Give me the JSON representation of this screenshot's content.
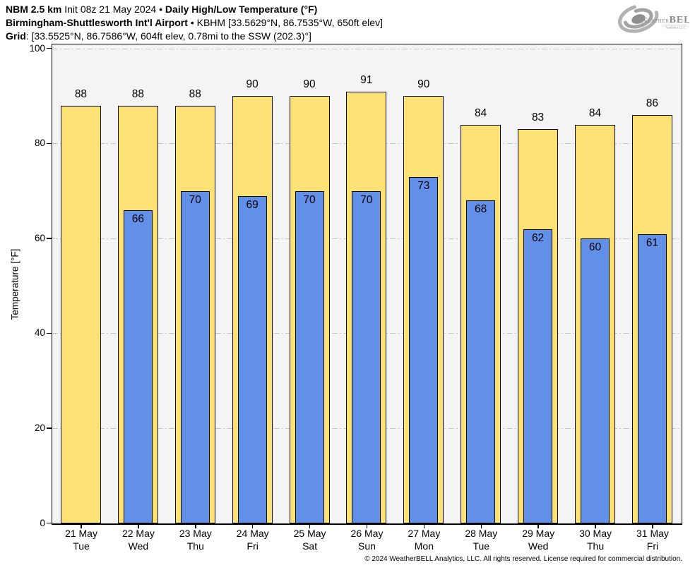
{
  "header": {
    "line1": {
      "model": "NBM 2.5 km",
      "init": "Init 08z 21 May 2024",
      "bullet": "•",
      "title": "Daily High/Low Temperature (°F)"
    },
    "line2": {
      "station": "Birmingham-Shuttlesworth Int'l Airport",
      "bullet": "•",
      "station_info": "KBHM [33.5629°N, 86.7535°W, 650ft elev]"
    },
    "line3": {
      "label": "Grid",
      "info": ": [33.5525°N, 86.7586°W, 604ft elev, 0.78mi to the SSW (202.3)°]"
    }
  },
  "logo": {
    "weather": "Weather",
    "bell": "BELL",
    "analytics": "Analytics LLC"
  },
  "footer": {
    "copyright": "© 2024 WeatherBELL Analytics, LLC. All rights reserved. License required for commercial distribution."
  },
  "chart_data": {
    "type": "bar",
    "title": "Daily High/Low Temperature (°F)",
    "xlabel": "",
    "ylabel": "Temperature [°F]",
    "ylim": [
      0,
      100
    ],
    "yticks": [
      0,
      20,
      40,
      60,
      80,
      100
    ],
    "grid": "horizontal dash-dot",
    "legend": "none",
    "colors": {
      "high": "#FCE175",
      "low": "#6290E9",
      "bar_outline": "#000000",
      "plot_bg": "#F4F4F4",
      "gridline": "#C4C4C4"
    },
    "categories": [
      {
        "date": "21 May",
        "day": "Tue"
      },
      {
        "date": "22 May",
        "day": "Wed"
      },
      {
        "date": "23 May",
        "day": "Thu"
      },
      {
        "date": "24 May",
        "day": "Fri"
      },
      {
        "date": "25 May",
        "day": "Sat"
      },
      {
        "date": "26 May",
        "day": "Sun"
      },
      {
        "date": "27 May",
        "day": "Mon"
      },
      {
        "date": "28 May",
        "day": "Tue"
      },
      {
        "date": "29 May",
        "day": "Wed"
      },
      {
        "date": "30 May",
        "day": "Thu"
      },
      {
        "date": "31 May",
        "day": "Fri"
      }
    ],
    "series": [
      {
        "name": "High",
        "values": [
          88,
          88,
          88,
          90,
          90,
          91,
          90,
          84,
          83,
          84,
          86
        ]
      },
      {
        "name": "Low",
        "values": [
          null,
          66,
          70,
          69,
          70,
          70,
          73,
          68,
          62,
          60,
          61
        ]
      }
    ]
  }
}
